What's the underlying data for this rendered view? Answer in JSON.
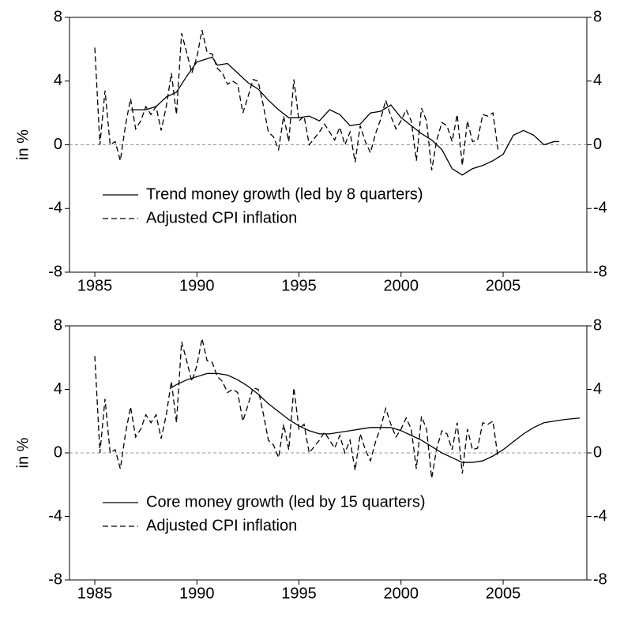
{
  "chart_data": [
    {
      "type": "line",
      "ylabel": "in %",
      "xlim": [
        1983.76,
        2009.1
      ],
      "xticks": [
        1985,
        1990,
        1995,
        2000,
        2005
      ],
      "ylim": [
        -8,
        8
      ],
      "yticks": [
        -8,
        -4,
        0,
        4,
        8
      ],
      "y2lim": [
        -8,
        8
      ],
      "y2ticks": [
        -8,
        -4,
        0,
        4,
        8
      ],
      "zero_line": true,
      "legend": "lower left",
      "series": [
        {
          "name": "Trend money growth (led by 8 quarters)",
          "color": "#000000",
          "dash": "solid",
          "x": [
            1986.75,
            1987,
            1987.5,
            1988,
            1988.5,
            1989,
            1989.5,
            1990,
            1990.5,
            1990.75,
            1991,
            1991.5,
            1992,
            1992.5,
            1993,
            1993.5,
            1994,
            1994.5,
            1995,
            1995.5,
            1996,
            1996.5,
            1997,
            1997.5,
            1998,
            1998.5,
            1999,
            1999.5,
            2000,
            2000.5,
            2001,
            2001.5,
            2002,
            2002.5,
            2003,
            2003.5,
            2004,
            2004.5,
            2005,
            2005.5,
            2006,
            2006.5,
            2007,
            2007.5,
            2007.75
          ],
          "values": [
            2.2,
            2.2,
            2.2,
            2.4,
            3.0,
            3.3,
            4.3,
            5.2,
            5.4,
            5.5,
            5.0,
            5.1,
            4.5,
            3.9,
            3.5,
            2.8,
            2.2,
            1.7,
            1.7,
            1.8,
            1.5,
            2.2,
            1.9,
            1.2,
            1.3,
            2.0,
            2.1,
            2.5,
            1.7,
            1.2,
            0.7,
            0.3,
            -0.3,
            -1.5,
            -1.9,
            -1.5,
            -1.3,
            -1.0,
            -0.6,
            0.6,
            0.9,
            0.6,
            0.0,
            0.2,
            0.2
          ]
        },
        {
          "name": "Adjusted CPI inflation",
          "color": "#000000",
          "dash": "dashed",
          "x": [
            1985,
            1985.25,
            1985.5,
            1985.75,
            1986,
            1986.25,
            1986.5,
            1986.75,
            1987,
            1987.25,
            1987.5,
            1987.75,
            1988,
            1988.25,
            1988.5,
            1988.75,
            1989,
            1989.25,
            1989.5,
            1989.75,
            1990,
            1990.25,
            1990.5,
            1990.75,
            1991,
            1991.25,
            1991.5,
            1991.75,
            1992,
            1992.25,
            1992.5,
            1992.75,
            1993,
            1993.25,
            1993.5,
            1993.75,
            1994,
            1994.25,
            1994.5,
            1994.75,
            1995,
            1995.25,
            1995.5,
            1995.75,
            1996,
            1996.25,
            1996.5,
            1996.75,
            1997,
            1997.25,
            1997.5,
            1997.75,
            1998,
            1998.25,
            1998.5,
            1998.75,
            1999,
            1999.25,
            1999.5,
            1999.75,
            2000,
            2000.25,
            2000.5,
            2000.75,
            2001,
            2001.25,
            2001.5,
            2001.75,
            2002,
            2002.25,
            2002.5,
            2002.75,
            2003,
            2003.25,
            2003.5,
            2003.75,
            2004,
            2004.25,
            2004.5,
            2004.75
          ],
          "values": [
            6.1,
            0,
            3.4,
            0,
            0.2,
            -1.0,
            1.2,
            2.9,
            1.0,
            1.5,
            2.4,
            1.9,
            2.4,
            0.9,
            2.4,
            4.5,
            1.9,
            7.0,
            5.8,
            4.5,
            5.5,
            7.2,
            5.8,
            5.7,
            4.8,
            4.5,
            3.8,
            4.0,
            3.8,
            2.0,
            3.0,
            4.1,
            4.0,
            2.5,
            0.8,
            0.5,
            -0.3,
            1.8,
            0.2,
            4.1,
            1.5,
            1.8,
            0.0,
            0.4,
            0.8,
            1.3,
            0.8,
            0.3,
            1.1,
            0.0,
            0.8,
            -1.1,
            1.2,
            0.2,
            -0.5,
            0.7,
            1.6,
            2.8,
            1.8,
            1.0,
            1.5,
            2.2,
            1.5,
            -1.0,
            2.3,
            1.5,
            -1.6,
            0.3,
            1.4,
            1.2,
            0.2,
            1.9,
            -1.3,
            1.5,
            0.2,
            0.3,
            1.9,
            1.8,
            2.0,
            -0.3
          ]
        }
      ]
    },
    {
      "type": "line",
      "ylabel": "in %",
      "xlim": [
        1983.76,
        2009.1
      ],
      "xticks": [
        1985,
        1990,
        1995,
        2000,
        2005
      ],
      "ylim": [
        -8,
        8
      ],
      "yticks": [
        -8,
        -4,
        0,
        4,
        8
      ],
      "y2lim": [
        -8,
        8
      ],
      "y2ticks": [
        -8,
        -4,
        0,
        4,
        8
      ],
      "zero_line": true,
      "legend": "lower left",
      "series": [
        {
          "name": "Core money growth (led by 15 quarters)",
          "color": "#000000",
          "dash": "solid",
          "x": [
            1988.75,
            1989,
            1989.5,
            1990,
            1990.5,
            1991,
            1991.5,
            1992,
            1992.5,
            1993,
            1993.5,
            1994,
            1994.5,
            1995,
            1995.5,
            1996,
            1996.5,
            1997,
            1997.5,
            1998,
            1998.5,
            1999,
            1999.5,
            2000,
            2000.5,
            2001,
            2001.5,
            2002,
            2002.5,
            2003,
            2003.5,
            2004,
            2004.5,
            2005,
            2005.5,
            2006,
            2006.5,
            2007,
            2007.5,
            2008,
            2008.75
          ],
          "values": [
            4.1,
            4.3,
            4.6,
            4.8,
            5.0,
            5.0,
            4.9,
            4.6,
            4.2,
            3.7,
            3.1,
            2.6,
            2.1,
            1.7,
            1.4,
            1.2,
            1.2,
            1.3,
            1.4,
            1.5,
            1.6,
            1.6,
            1.6,
            1.4,
            1.1,
            0.8,
            0.4,
            0.0,
            -0.3,
            -0.6,
            -0.6,
            -0.5,
            -0.2,
            0.2,
            0.7,
            1.2,
            1.6,
            1.9,
            2.0,
            2.1,
            2.2
          ]
        },
        {
          "name": "Adjusted CPI inflation",
          "color": "#000000",
          "dash": "dashed",
          "x": [
            1985,
            1985.25,
            1985.5,
            1985.75,
            1986,
            1986.25,
            1986.5,
            1986.75,
            1987,
            1987.25,
            1987.5,
            1987.75,
            1988,
            1988.25,
            1988.5,
            1988.75,
            1989,
            1989.25,
            1989.5,
            1989.75,
            1990,
            1990.25,
            1990.5,
            1990.75,
            1991,
            1991.25,
            1991.5,
            1991.75,
            1992,
            1992.25,
            1992.5,
            1992.75,
            1993,
            1993.25,
            1993.5,
            1993.75,
            1994,
            1994.25,
            1994.5,
            1994.75,
            1995,
            1995.25,
            1995.5,
            1995.75,
            1996,
            1996.25,
            1996.5,
            1996.75,
            1997,
            1997.25,
            1997.5,
            1997.75,
            1998,
            1998.25,
            1998.5,
            1998.75,
            1999,
            1999.25,
            1999.5,
            1999.75,
            2000,
            2000.25,
            2000.5,
            2000.75,
            2001,
            2001.25,
            2001.5,
            2001.75,
            2002,
            2002.25,
            2002.5,
            2002.75,
            2003,
            2003.25,
            2003.5,
            2003.75,
            2004,
            2004.25,
            2004.5,
            2004.75
          ],
          "values": [
            6.1,
            0,
            3.4,
            0,
            0.2,
            -1.0,
            1.2,
            2.9,
            1.0,
            1.5,
            2.4,
            1.9,
            2.4,
            0.9,
            2.4,
            4.5,
            1.9,
            7.0,
            5.8,
            4.5,
            5.5,
            7.2,
            5.8,
            5.7,
            4.8,
            4.5,
            3.8,
            4.0,
            3.8,
            2.0,
            3.0,
            4.1,
            4.0,
            2.5,
            0.8,
            0.5,
            -0.3,
            1.8,
            0.2,
            4.1,
            1.5,
            1.8,
            0.0,
            0.4,
            0.8,
            1.3,
            0.8,
            0.3,
            1.1,
            0.0,
            0.8,
            -1.1,
            1.2,
            0.2,
            -0.5,
            0.7,
            1.6,
            2.8,
            1.8,
            1.0,
            1.5,
            2.2,
            1.5,
            -1.0,
            2.3,
            1.5,
            -1.6,
            0.3,
            1.4,
            1.2,
            0.2,
            1.9,
            -1.3,
            1.5,
            0.2,
            0.3,
            1.9,
            1.8,
            2.0,
            -0.3
          ]
        }
      ]
    }
  ]
}
